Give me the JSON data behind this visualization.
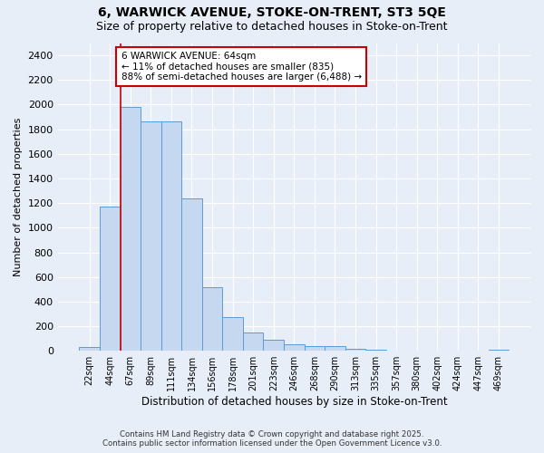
{
  "title1": "6, WARWICK AVENUE, STOKE-ON-TRENT, ST3 5QE",
  "title2": "Size of property relative to detached houses in Stoke-on-Trent",
  "xlabel": "Distribution of detached houses by size in Stoke-on-Trent",
  "ylabel": "Number of detached properties",
  "categories": [
    "22sqm",
    "44sqm",
    "67sqm",
    "89sqm",
    "111sqm",
    "134sqm",
    "156sqm",
    "178sqm",
    "201sqm",
    "223sqm",
    "246sqm",
    "268sqm",
    "290sqm",
    "313sqm",
    "335sqm",
    "357sqm",
    "380sqm",
    "402sqm",
    "424sqm",
    "447sqm",
    "469sqm"
  ],
  "values": [
    30,
    1170,
    1980,
    1860,
    1860,
    1240,
    520,
    275,
    150,
    90,
    50,
    40,
    40,
    15,
    10,
    5,
    3,
    3,
    3,
    3,
    12
  ],
  "bar_color": "#c5d8f0",
  "bar_edge_color": "#5b9bd5",
  "background_color": "#e8eef7",
  "grid_color": "#ffffff",
  "vline_color": "#cc0000",
  "vline_pos": 1.5,
  "annotation_line1": "6 WARWICK AVENUE: 64sqm",
  "annotation_line2": "← 11% of detached houses are smaller (835)",
  "annotation_line3": "88% of semi-detached houses are larger (6,488) →",
  "annotation_box_color": "#ffffff",
  "annotation_box_edge": "#cc0000",
  "footer1": "Contains HM Land Registry data © Crown copyright and database right 2025.",
  "footer2": "Contains public sector information licensed under the Open Government Licence v3.0.",
  "ylim": [
    0,
    2500
  ],
  "yticks": [
    0,
    200,
    400,
    600,
    800,
    1000,
    1200,
    1400,
    1600,
    1800,
    2000,
    2200,
    2400
  ]
}
